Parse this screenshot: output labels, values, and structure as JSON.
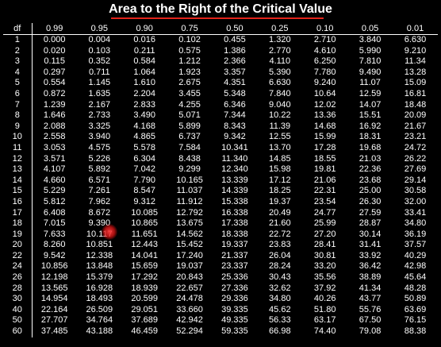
{
  "title": "Area to the Right of the Critical Value",
  "colors": {
    "background": "#000000",
    "text": "#ffffff",
    "title_underline": "#e2231a",
    "cursor": "#e52222"
  },
  "table": {
    "df_header": "df",
    "columns": [
      "0.99",
      "0.95",
      "0.90",
      "0.75",
      "0.50",
      "0.25",
      "0.10",
      "0.05",
      "0.01"
    ],
    "rows": [
      {
        "df": "1",
        "values": [
          "0.000",
          "0.004",
          "0.016",
          "0.102",
          "0.455",
          "1.320",
          "2.710",
          "3.840",
          "6.630"
        ]
      },
      {
        "df": "2",
        "values": [
          "0.020",
          "0.103",
          "0.211",
          "0.575",
          "1.386",
          "2.770",
          "4.610",
          "5.990",
          "9.210"
        ]
      },
      {
        "df": "3",
        "values": [
          "0.115",
          "0.352",
          "0.584",
          "1.212",
          "2.366",
          "4.110",
          "6.250",
          "7.810",
          "11.34"
        ]
      },
      {
        "df": "4",
        "values": [
          "0.297",
          "0.711",
          "1.064",
          "1.923",
          "3.357",
          "5.390",
          "7.780",
          "9.490",
          "13.28"
        ]
      },
      {
        "df": "5",
        "values": [
          "0.554",
          "1.145",
          "1.610",
          "2.675",
          "4.351",
          "6.630",
          "9.240",
          "11.07",
          "15.09"
        ]
      },
      {
        "df": "6",
        "values": [
          "0.872",
          "1.635",
          "2.204",
          "3.455",
          "5.348",
          "7.840",
          "10.64",
          "12.59",
          "16.81"
        ]
      },
      {
        "df": "7",
        "values": [
          "1.239",
          "2.167",
          "2.833",
          "4.255",
          "6.346",
          "9.040",
          "12.02",
          "14.07",
          "18.48"
        ]
      },
      {
        "df": "8",
        "values": [
          "1.646",
          "2.733",
          "3.490",
          "5.071",
          "7.344",
          "10.22",
          "13.36",
          "15.51",
          "20.09"
        ]
      },
      {
        "df": "9",
        "values": [
          "2.088",
          "3.325",
          "4.168",
          "5.899",
          "8.343",
          "11.39",
          "14.68",
          "16.92",
          "21.67"
        ]
      },
      {
        "df": "10",
        "values": [
          "2.558",
          "3.940",
          "4.865",
          "6.737",
          "9.342",
          "12.55",
          "15.99",
          "18.31",
          "23.21"
        ]
      },
      {
        "df": "11",
        "values": [
          "3.053",
          "4.575",
          "5.578",
          "7.584",
          "10.341",
          "13.70",
          "17.28",
          "19.68",
          "24.72"
        ]
      },
      {
        "df": "12",
        "values": [
          "3.571",
          "5.226",
          "6.304",
          "8.438",
          "11.340",
          "14.85",
          "18.55",
          "21.03",
          "26.22"
        ]
      },
      {
        "df": "13",
        "values": [
          "4.107",
          "5.892",
          "7.042",
          "9.299",
          "12.340",
          "15.98",
          "19.81",
          "22.36",
          "27.69"
        ]
      },
      {
        "df": "14",
        "values": [
          "4.660",
          "6.571",
          "7.790",
          "10.165",
          "13.339",
          "17.12",
          "21.06",
          "23.68",
          "29.14"
        ]
      },
      {
        "df": "15",
        "values": [
          "5.229",
          "7.261",
          "8.547",
          "11.037",
          "14.339",
          "18.25",
          "22.31",
          "25.00",
          "30.58"
        ]
      },
      {
        "df": "16",
        "values": [
          "5.812",
          "7.962",
          "9.312",
          "11.912",
          "15.338",
          "19.37",
          "23.54",
          "26.30",
          "32.00"
        ]
      },
      {
        "df": "17",
        "values": [
          "6.408",
          "8.672",
          "10.085",
          "12.792",
          "16.338",
          "20.49",
          "24.77",
          "27.59",
          "33.41"
        ]
      },
      {
        "df": "18",
        "values": [
          "7.015",
          "9.390",
          "10.865",
          "13.675",
          "17.338",
          "21.60",
          "25.99",
          "28.87",
          "34.80"
        ]
      },
      {
        "df": "19",
        "values": [
          "7.633",
          "10.117",
          "11.651",
          "14.562",
          "18.338",
          "22.72",
          "27.20",
          "30.14",
          "36.19"
        ]
      },
      {
        "df": "20",
        "values": [
          "8.260",
          "10.851",
          "12.443",
          "15.452",
          "19.337",
          "23.83",
          "28.41",
          "31.41",
          "37.57"
        ]
      },
      {
        "df": "22",
        "values": [
          "9.542",
          "12.338",
          "14.041",
          "17.240",
          "21.337",
          "26.04",
          "30.81",
          "33.92",
          "40.29"
        ]
      },
      {
        "df": "24",
        "values": [
          "10.856",
          "13.848",
          "15.659",
          "19.037",
          "23.337",
          "28.24",
          "33.20",
          "36.42",
          "42.98"
        ]
      },
      {
        "df": "26",
        "values": [
          "12.198",
          "15.379",
          "17.292",
          "20.843",
          "25.336",
          "30.43",
          "35.56",
          "38.89",
          "45.64"
        ]
      },
      {
        "df": "28",
        "values": [
          "13.565",
          "16.928",
          "18.939",
          "22.657",
          "27.336",
          "32.62",
          "37.92",
          "41.34",
          "48.28"
        ]
      },
      {
        "df": "30",
        "values": [
          "14.954",
          "18.493",
          "20.599",
          "24.478",
          "29.336",
          "34.80",
          "40.26",
          "43.77",
          "50.89"
        ]
      },
      {
        "df": "40",
        "values": [
          "22.164",
          "26.509",
          "29.051",
          "33.660",
          "39.335",
          "45.62",
          "51.80",
          "55.76",
          "63.69"
        ]
      },
      {
        "df": "50",
        "values": [
          "27.707",
          "34.764",
          "37.689",
          "42.942",
          "49.335",
          "56.33",
          "63.17",
          "67.50",
          "76.15"
        ]
      },
      {
        "df": "60",
        "values": [
          "37.485",
          "43.188",
          "46.459",
          "52.294",
          "59.335",
          "66.98",
          "74.40",
          "79.08",
          "88.38"
        ]
      }
    ]
  }
}
